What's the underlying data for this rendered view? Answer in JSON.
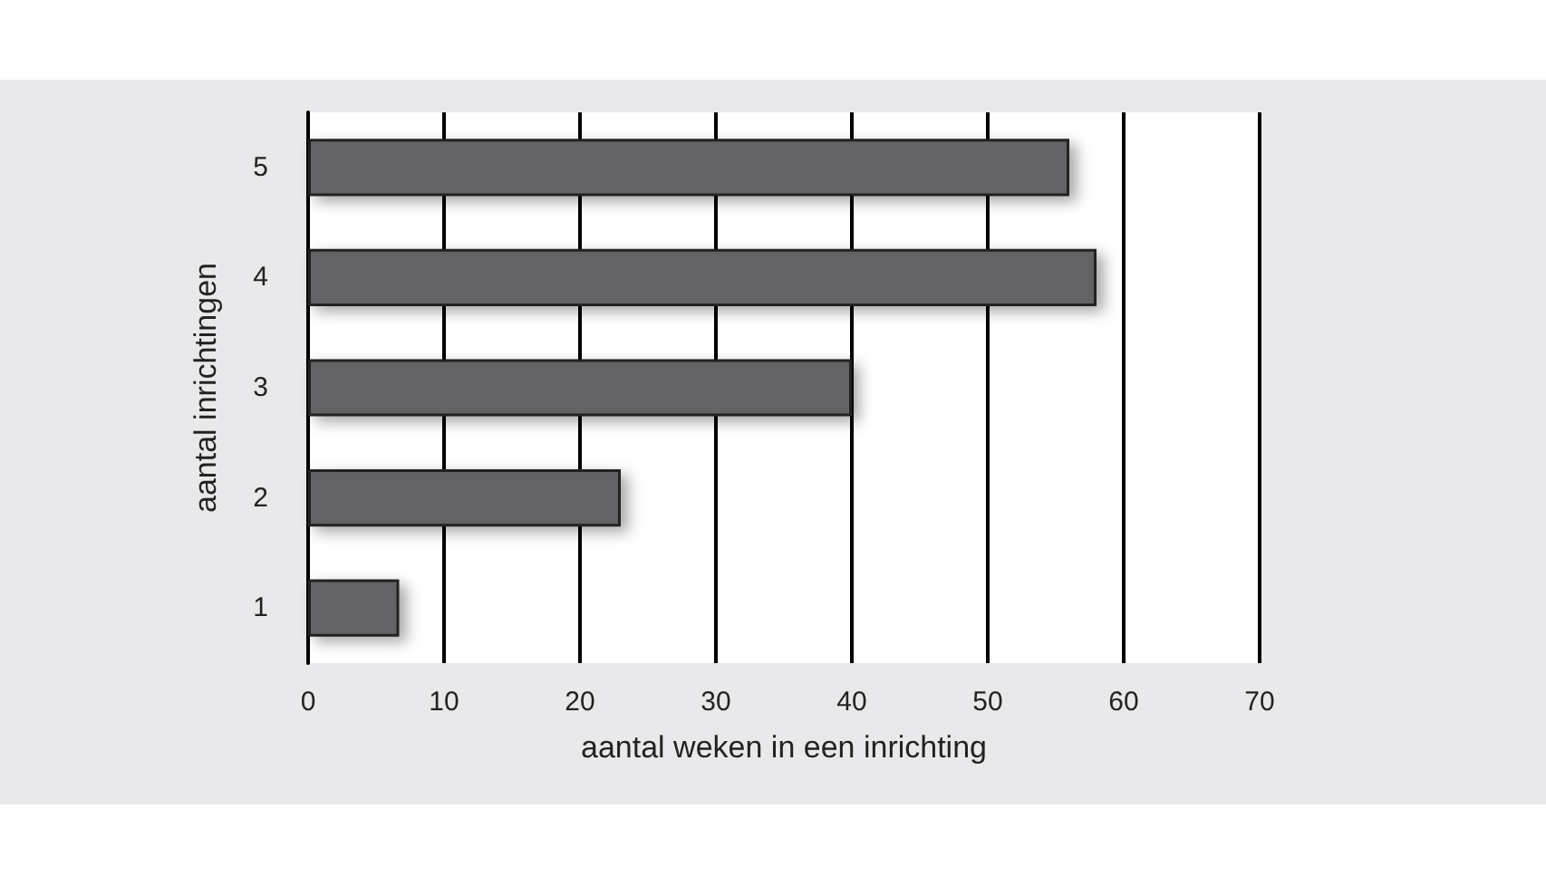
{
  "chart_data": {
    "type": "bar",
    "orientation": "horizontal",
    "categories": [
      "5",
      "4",
      "3",
      "2",
      "1"
    ],
    "values": [
      56,
      58,
      40,
      23,
      6.7
    ],
    "color": "#636466",
    "xlabel": "aantal weken in een inrichting",
    "ylabel": "aantal inrichtingen",
    "xlim": [
      0,
      70
    ],
    "xticks": [
      0,
      10,
      20,
      30,
      40,
      50,
      60,
      70
    ],
    "grid": "x"
  }
}
